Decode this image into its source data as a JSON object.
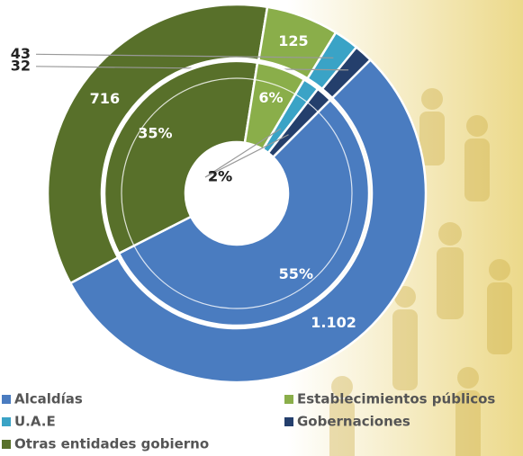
{
  "chart_data": {
    "type": "donut",
    "categories": [
      "Alcaldías",
      "Otras entidades gobierno",
      "Establecimientos públicos",
      "U.A.E",
      "Gobernaciones"
    ],
    "colors": [
      "#4a7cc0",
      "#58702a",
      "#8aae4a",
      "#3aa3c6",
      "#243f6c"
    ],
    "series": [
      {
        "values": [
          1102,
          716,
          125,
          43,
          32
        ],
        "value_labels": [
          "1.102",
          "716",
          "125",
          "43",
          "32"
        ]
      },
      {
        "values": [
          55,
          35,
          6,
          2,
          2
        ],
        "value_labels": [
          "55%",
          "35%",
          "6%",
          "2%",
          "2%"
        ]
      }
    ]
  }
}
